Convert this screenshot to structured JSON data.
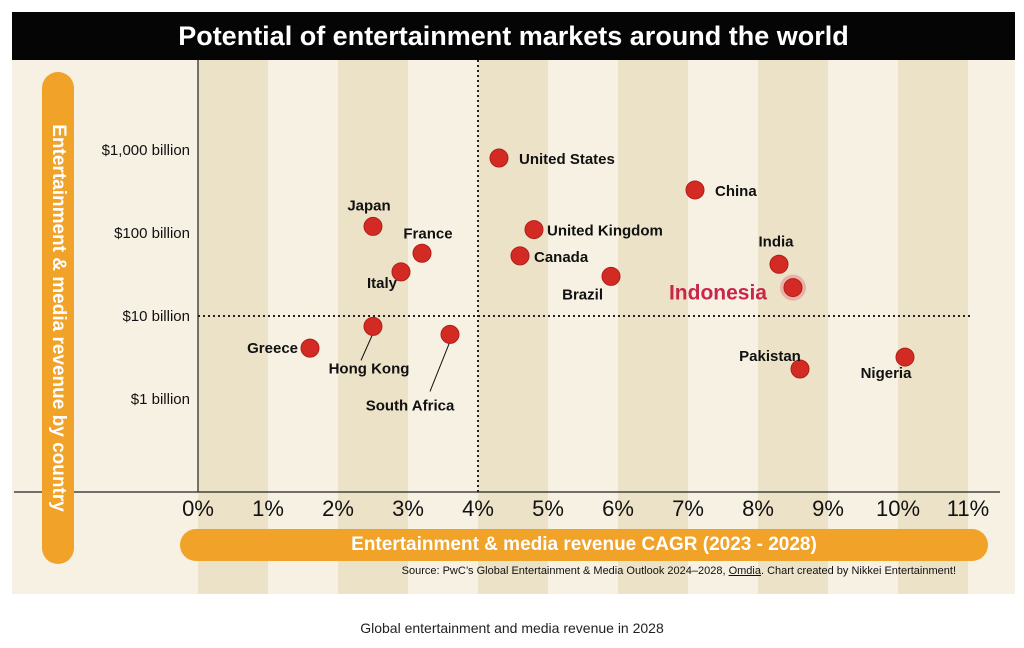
{
  "caption": "Global entertainment and media revenue in 2028",
  "source": {
    "prefix": "Source: PwC’s Global Entertainment & Media Outlook 2024–2028, ",
    "link": "Omdia",
    "suffix": ". Chart created by Nikkei Entertainment!"
  },
  "colors": {
    "title_bar": "#050505",
    "background": "#f6f1e2",
    "stripe": "#ebe2c8",
    "axis_pill": "#f0a229",
    "point": "#d42a24",
    "highlight_label": "#c8264a"
  },
  "chart_data": {
    "type": "scatter",
    "title": "Potential of entertainment markets around the world",
    "xlabel": "Entertainment & media revenue CAGR (2023 - 2028)",
    "ylabel": "Entertainment & media revenue by country",
    "x_scale": "linear",
    "y_scale": "log",
    "xlim": [
      0,
      11
    ],
    "x_ticks": [
      "0%",
      "1%",
      "2%",
      "3%",
      "4%",
      "5%",
      "6%",
      "7%",
      "8%",
      "9%",
      "10%",
      "11%"
    ],
    "y_ticks": [
      {
        "value": 1,
        "label": "$1 billion"
      },
      {
        "value": 10,
        "label": "$10 billion"
      },
      {
        "value": 100,
        "label": "$100 billion"
      },
      {
        "value": 1000,
        "label": "$1,000 billion"
      }
    ],
    "reference_lines": {
      "x": 4,
      "y": 10
    },
    "grid": "alternating vertical bands",
    "points": [
      {
        "name": "United States",
        "x": 4.3,
        "y": 800
      },
      {
        "name": "China",
        "x": 7.1,
        "y": 330
      },
      {
        "name": "Japan",
        "x": 2.5,
        "y": 120
      },
      {
        "name": "United Kingdom",
        "x": 4.8,
        "y": 110
      },
      {
        "name": "France",
        "x": 3.2,
        "y": 57
      },
      {
        "name": "Canada",
        "x": 4.6,
        "y": 53
      },
      {
        "name": "India",
        "x": 8.3,
        "y": 42
      },
      {
        "name": "Italy",
        "x": 2.9,
        "y": 34
      },
      {
        "name": "Brazil",
        "x": 5.9,
        "y": 30
      },
      {
        "name": "Indonesia",
        "x": 8.5,
        "y": 22,
        "highlight": true
      },
      {
        "name": "Hong Kong",
        "x": 2.5,
        "y": 7.5
      },
      {
        "name": "South Africa",
        "x": 3.6,
        "y": 6
      },
      {
        "name": "Greece",
        "x": 1.6,
        "y": 4.1
      },
      {
        "name": "Pakistan",
        "x": 8.6,
        "y": 2.3
      },
      {
        "name": "Nigeria",
        "x": 10.1,
        "y": 3.2
      }
    ]
  }
}
